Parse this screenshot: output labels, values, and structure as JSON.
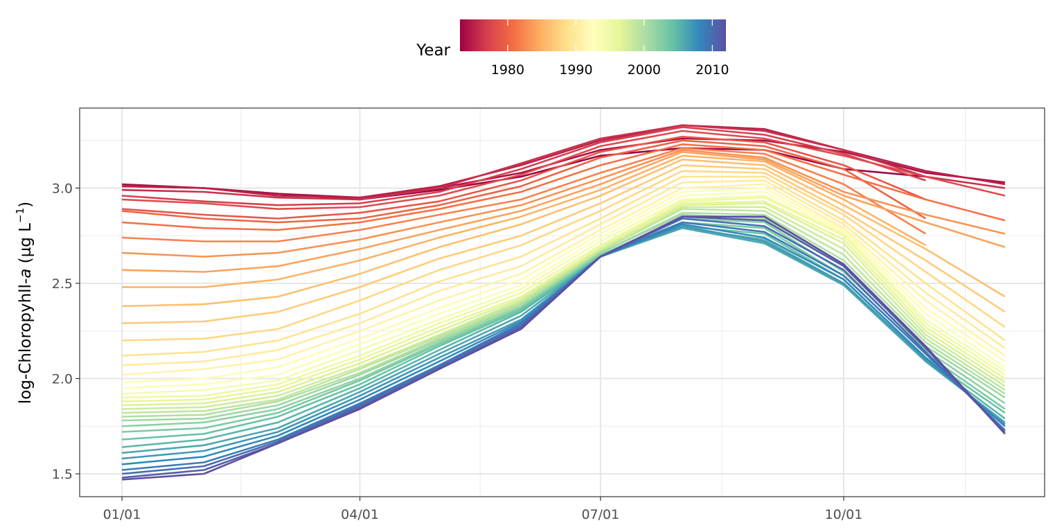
{
  "chart_data": {
    "type": "line",
    "ylabel_main": "log-Chloropyhll-",
    "ylabel_italic": "a",
    "ylabel_unit_open": " (µg L",
    "ylabel_unit_sup": "−1",
    "ylabel_unit_close": ")",
    "xlabel": "",
    "x_ticks": [
      {
        "label": "01/01",
        "day": 1
      },
      {
        "label": "04/01",
        "day": 91
      },
      {
        "label": "07/01",
        "day": 182
      },
      {
        "label": "10/01",
        "day": 274
      }
    ],
    "y_ticks": [
      1.5,
      2.0,
      2.5,
      3.0
    ],
    "y_tick_labels": [
      "1.5",
      "2.0",
      "2.5",
      "3.0"
    ],
    "xlim_day": [
      -15,
      350
    ],
    "ylim": [
      1.38,
      3.42
    ],
    "grid": true,
    "legend": {
      "title": "Year",
      "position": "top",
      "ticks": [
        {
          "label": "1980",
          "value": 1980
        },
        {
          "label": "1990",
          "value": 1990
        },
        {
          "label": "2000",
          "value": 2000
        },
        {
          "label": "2010",
          "value": 2010
        }
      ],
      "range": [
        1973,
        2012
      ],
      "palette": [
        "#9e0142",
        "#d53e4f",
        "#f46d43",
        "#fdae61",
        "#fee08b",
        "#ffffbf",
        "#e6f598",
        "#abdda4",
        "#66c2a5",
        "#3288bd",
        "#5e4fa2"
      ]
    },
    "x_days": [
      1,
      32,
      60,
      91,
      121,
      152,
      182,
      213,
      244,
      274,
      305,
      335
    ],
    "series": [
      {
        "year": 1973,
        "values": [
          3.01,
          3.0,
          2.97,
          2.94,
          2.99,
          3.06,
          3.17,
          3.21,
          3.2,
          3.1,
          3.06,
          null
        ]
      },
      {
        "year": 1974,
        "values": [
          3.02,
          3.0,
          2.97,
          2.95,
          3.0,
          3.08,
          3.2,
          3.26,
          3.25,
          3.19,
          3.08,
          3.03
        ]
      },
      {
        "year": 1975,
        "values": [
          3.01,
          3.0,
          2.96,
          2.95,
          3.01,
          3.12,
          3.25,
          3.33,
          3.31,
          3.2,
          3.09,
          3.02
        ]
      },
      {
        "year": 1976,
        "values": [
          2.99,
          2.98,
          2.95,
          2.94,
          3.0,
          3.13,
          3.26,
          3.33,
          3.3,
          3.2,
          3.06,
          3.0
        ]
      },
      {
        "year": 1977,
        "values": [
          2.96,
          2.93,
          2.91,
          2.92,
          2.98,
          3.1,
          3.24,
          3.32,
          3.28,
          3.18,
          3.04,
          null
        ]
      },
      {
        "year": 1978,
        "values": [
          2.94,
          2.92,
          2.89,
          2.9,
          2.96,
          3.07,
          3.22,
          3.3,
          3.26,
          3.17,
          3.06,
          2.96
        ]
      },
      {
        "year": 1979,
        "values": [
          2.89,
          2.86,
          2.84,
          2.87,
          2.93,
          3.04,
          3.19,
          3.27,
          3.24,
          3.12,
          2.94,
          null
        ]
      },
      {
        "year": 1980,
        "values": [
          2.88,
          2.84,
          2.82,
          2.84,
          2.91,
          3.01,
          3.16,
          3.25,
          3.22,
          3.1,
          2.84,
          null
        ]
      },
      {
        "year": 1981,
        "values": [
          2.82,
          2.79,
          2.78,
          2.82,
          2.89,
          2.98,
          3.12,
          3.23,
          3.2,
          3.07,
          2.94,
          2.83
        ]
      },
      {
        "year": 1982,
        "values": [
          2.74,
          2.72,
          2.72,
          2.78,
          2.86,
          2.94,
          3.08,
          3.21,
          3.18,
          3.02,
          2.76,
          null
        ]
      },
      {
        "year": 1983,
        "values": [
          2.66,
          2.64,
          2.66,
          2.73,
          2.82,
          2.91,
          3.05,
          3.2,
          3.16,
          2.98,
          2.86,
          2.76
        ]
      },
      {
        "year": 1984,
        "values": [
          2.57,
          2.56,
          2.59,
          2.68,
          2.78,
          2.88,
          3.02,
          3.19,
          3.15,
          2.96,
          2.82,
          2.69
        ]
      },
      {
        "year": 1985,
        "values": [
          2.48,
          2.48,
          2.52,
          2.62,
          2.74,
          2.85,
          2.99,
          3.17,
          3.14,
          2.94,
          2.7,
          null
        ]
      },
      {
        "year": 1986,
        "values": [
          2.38,
          2.39,
          2.43,
          2.55,
          2.69,
          2.81,
          2.96,
          3.15,
          3.12,
          2.91,
          2.68,
          2.43
        ]
      },
      {
        "year": 1987,
        "values": [
          2.29,
          2.3,
          2.35,
          2.48,
          2.63,
          2.75,
          2.92,
          3.12,
          3.1,
          2.88,
          2.62,
          2.35
        ]
      },
      {
        "year": 1988,
        "values": [
          2.2,
          2.21,
          2.26,
          2.41,
          2.57,
          2.7,
          2.88,
          3.09,
          3.08,
          2.86,
          2.56,
          2.27
        ]
      },
      {
        "year": 1989,
        "values": [
          2.12,
          2.14,
          2.2,
          2.34,
          2.51,
          2.64,
          2.84,
          3.06,
          3.06,
          2.83,
          2.5,
          2.2
        ]
      },
      {
        "year": 1990,
        "values": [
          2.07,
          2.09,
          2.15,
          2.29,
          2.46,
          2.59,
          2.81,
          3.03,
          3.04,
          2.81,
          2.45,
          2.16
        ]
      },
      {
        "year": 1991,
        "values": [
          2.02,
          2.05,
          2.1,
          2.25,
          2.41,
          2.55,
          2.78,
          3.0,
          3.02,
          2.79,
          2.41,
          2.12
        ]
      },
      {
        "year": 1992,
        "values": [
          1.98,
          2.0,
          2.06,
          2.21,
          2.37,
          2.52,
          2.76,
          2.98,
          3.0,
          2.78,
          2.37,
          2.09
        ]
      },
      {
        "year": 1993,
        "values": [
          1.95,
          1.97,
          2.02,
          2.18,
          2.34,
          2.49,
          2.74,
          2.96,
          2.98,
          2.77,
          2.34,
          2.06
        ]
      },
      {
        "year": 1994,
        "values": [
          1.92,
          1.94,
          1.99,
          2.15,
          2.31,
          2.47,
          2.72,
          2.94,
          2.96,
          2.76,
          2.31,
          2.04
        ]
      },
      {
        "year": 1995,
        "values": [
          1.9,
          1.91,
          1.97,
          2.12,
          2.29,
          2.45,
          2.7,
          2.93,
          2.95,
          2.75,
          2.29,
          2.02
        ]
      },
      {
        "year": 1996,
        "values": [
          1.88,
          1.89,
          1.95,
          2.1,
          2.27,
          2.43,
          2.69,
          2.92,
          2.93,
          2.73,
          2.27,
          2.0
        ]
      },
      {
        "year": 1997,
        "values": [
          1.86,
          1.87,
          1.93,
          2.08,
          2.25,
          2.42,
          2.68,
          2.91,
          2.92,
          2.71,
          2.25,
          1.98
        ]
      },
      {
        "year": 1998,
        "values": [
          1.84,
          1.85,
          1.91,
          2.06,
          2.23,
          2.41,
          2.67,
          2.9,
          2.9,
          2.68,
          2.23,
          1.96
        ]
      },
      {
        "year": 1999,
        "values": [
          1.82,
          1.83,
          1.89,
          2.05,
          2.22,
          2.4,
          2.67,
          2.89,
          2.88,
          2.65,
          2.21,
          1.94
        ]
      },
      {
        "year": 2000,
        "values": [
          1.8,
          1.81,
          1.88,
          2.03,
          2.21,
          2.39,
          2.66,
          2.87,
          2.86,
          2.62,
          2.19,
          1.92
        ]
      },
      {
        "year": 2001,
        "values": [
          1.78,
          1.79,
          1.86,
          2.02,
          2.2,
          2.38,
          2.66,
          2.86,
          2.84,
          2.59,
          2.17,
          1.9
        ]
      },
      {
        "year": 2002,
        "values": [
          1.75,
          1.77,
          1.84,
          2.0,
          2.19,
          2.37,
          2.65,
          2.84,
          2.82,
          2.56,
          2.15,
          1.87
        ]
      },
      {
        "year": 2003,
        "values": [
          1.72,
          1.74,
          1.82,
          1.99,
          2.18,
          2.37,
          2.65,
          2.82,
          2.79,
          2.54,
          2.13,
          1.84
        ]
      },
      {
        "year": 2004,
        "values": [
          1.68,
          1.71,
          1.8,
          1.97,
          2.17,
          2.36,
          2.64,
          2.8,
          2.76,
          2.52,
          2.11,
          1.82
        ]
      },
      {
        "year": 2005,
        "values": [
          1.64,
          1.68,
          1.77,
          1.95,
          2.15,
          2.35,
          2.64,
          2.79,
          2.73,
          2.5,
          2.1,
          1.79
        ]
      },
      {
        "year": 2006,
        "values": [
          1.61,
          1.65,
          1.74,
          1.93,
          2.13,
          2.33,
          2.64,
          2.79,
          2.71,
          2.49,
          2.09,
          1.77
        ]
      },
      {
        "year": 2007,
        "values": [
          1.58,
          1.62,
          1.72,
          1.91,
          2.11,
          2.31,
          2.64,
          2.8,
          2.72,
          2.5,
          2.1,
          1.76
        ]
      },
      {
        "year": 2008,
        "values": [
          1.55,
          1.59,
          1.7,
          1.89,
          2.09,
          2.3,
          2.64,
          2.81,
          2.74,
          2.52,
          2.11,
          1.75
        ]
      },
      {
        "year": 2009,
        "values": [
          1.52,
          1.56,
          1.68,
          1.87,
          2.07,
          2.29,
          2.64,
          2.82,
          2.77,
          2.54,
          2.13,
          1.73
        ]
      },
      {
        "year": 2010,
        "values": [
          1.5,
          1.54,
          1.67,
          1.86,
          2.06,
          2.28,
          2.64,
          2.84,
          2.8,
          2.57,
          2.14,
          1.72
        ]
      },
      {
        "year": 2011,
        "values": [
          1.48,
          1.52,
          1.66,
          1.85,
          2.05,
          2.27,
          2.64,
          2.85,
          2.83,
          2.59,
          2.16,
          1.71
        ]
      },
      {
        "year": 2012,
        "values": [
          1.47,
          1.5,
          1.66,
          1.84,
          2.05,
          2.26,
          2.64,
          2.85,
          2.85,
          2.6,
          2.17,
          1.71
        ]
      }
    ]
  }
}
